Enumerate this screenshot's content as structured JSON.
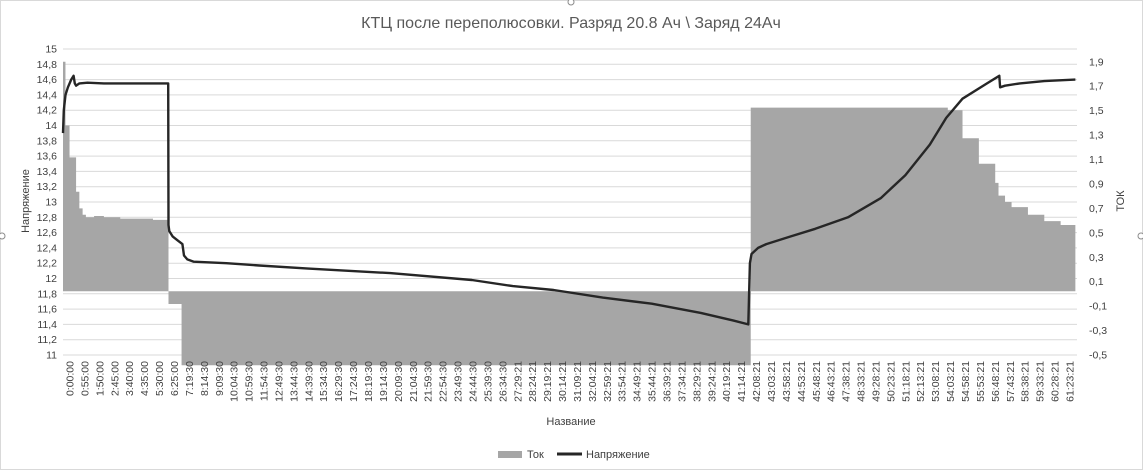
{
  "chart_data": {
    "type": "combo",
    "title": "КТЦ после переполюсовки. Разряд 20.8 Ач \\ Заряд 24Ач",
    "xlabel": "Название",
    "ylabel_left": "Напряжение",
    "ylabel_right": "ТОК",
    "y_left_ticks": [
      "15",
      "14,8",
      "14,6",
      "14,4",
      "14,2",
      "14",
      "13,8",
      "13,6",
      "13,4",
      "13,2",
      "13",
      "12,8",
      "12,6",
      "12,4",
      "12,2",
      "12",
      "11,8",
      "11,6",
      "11,4",
      "11,2",
      "11"
    ],
    "y_left_range": [
      11,
      15
    ],
    "y_right_ticks": [
      "1,9",
      "1,7",
      "1,5",
      "1,3",
      "1,1",
      "0,9",
      "0,7",
      "0,5",
      "0,3",
      "0,1",
      "-0,1",
      "-0,3",
      "-0,5"
    ],
    "y_right_range": [
      -0.5,
      1.9
    ],
    "x_ticks": [
      "0:00:00",
      "0:55:00",
      "1:50:00",
      "2:45:00",
      "3:40:00",
      "4:35:00",
      "5:30:00",
      "6:25:00",
      "7:19:30",
      "8:14:30",
      "9:09:30",
      "10:04:30",
      "10:59:30",
      "11:54:30",
      "12:49:30",
      "13:44:30",
      "14:39:30",
      "15:34:30",
      "16:29:30",
      "17:24:30",
      "18:19:30",
      "19:14:30",
      "20:09:30",
      "21:04:30",
      "21:59:30",
      "22:54:30",
      "23:49:30",
      "24:44:30",
      "25:39:30",
      "26:34:30",
      "27:29:21",
      "28:24:21",
      "29:19:21",
      "30:14:21",
      "31:09:21",
      "32:04:21",
      "32:59:21",
      "33:54:21",
      "34:49:21",
      "35:44:21",
      "36:39:21",
      "37:34:21",
      "38:29:21",
      "39:24:21",
      "40:19:21",
      "41:14:21",
      "42:08:21",
      "43:03:21",
      "43:58:21",
      "44:53:21",
      "45:48:21",
      "46:43:21",
      "47:38:21",
      "48:33:21",
      "49:28:21",
      "50:23:21",
      "51:18:21",
      "52:13:21",
      "53:08:21",
      "54:03:21",
      "54:58:21",
      "55:53:21",
      "56:48:21",
      "57:43:21",
      "58:38:21",
      "59:33:21",
      "60:28:21",
      "61:23:21"
    ],
    "series": [
      {
        "name": "Ток",
        "kind": "area",
        "axis": "right",
        "color": "#a6a6a6",
        "x": [
          0,
          0.15,
          0.4,
          0.8,
          1.0,
          1.2,
          1.4,
          1.6,
          1.9,
          2.5,
          3.5,
          4.5,
          5.5,
          6.4,
          6.45,
          7.2,
          7.25,
          42.0,
          42.05,
          49.0,
          53.8,
          54.1,
          55.0,
          56.0,
          57.0,
          57.2,
          57.6,
          58.0,
          59.0,
          60.0,
          61.0,
          61.9
        ],
        "values": [
          1.8,
          1.3,
          1.05,
          0.78,
          0.65,
          0.6,
          0.58,
          0.58,
          0.59,
          0.58,
          0.57,
          0.57,
          0.56,
          0.56,
          -0.1,
          -0.1,
          -0.58,
          -0.58,
          1.44,
          1.44,
          1.44,
          1.42,
          1.2,
          1.0,
          0.85,
          0.75,
          0.7,
          0.66,
          0.6,
          0.55,
          0.52,
          0.51
        ]
      },
      {
        "name": "Напряжение",
        "kind": "line",
        "axis": "left",
        "color": "#262626",
        "x": [
          0,
          0.05,
          0.15,
          0.3,
          0.5,
          0.65,
          0.72,
          0.8,
          1.0,
          1.5,
          2.5,
          3.5,
          4.5,
          5.5,
          6.43,
          6.45,
          6.5,
          6.7,
          7.0,
          7.3,
          7.4,
          7.6,
          8.0,
          10.0,
          12.0,
          15.0,
          20.0,
          25.0,
          27.5,
          30.0,
          33.0,
          36.0,
          39.0,
          41.0,
          41.9,
          42.0,
          42.1,
          42.5,
          43.0,
          44.5,
          46.0,
          48.0,
          50.0,
          51.5,
          53.0,
          54.0,
          55.0,
          56.5,
          57.25,
          57.3,
          57.6,
          58.5,
          60.0,
          61.9
        ],
        "values": [
          13.9,
          14.2,
          14.4,
          14.5,
          14.6,
          14.65,
          14.55,
          14.52,
          14.55,
          14.56,
          14.55,
          14.55,
          14.55,
          14.55,
          14.55,
          12.7,
          12.62,
          12.55,
          12.5,
          12.45,
          12.3,
          12.25,
          12.22,
          12.2,
          12.17,
          12.13,
          12.07,
          11.98,
          11.9,
          11.85,
          11.75,
          11.67,
          11.55,
          11.45,
          11.4,
          12.2,
          12.32,
          12.4,
          12.45,
          12.55,
          12.65,
          12.8,
          13.05,
          13.35,
          13.75,
          14.1,
          14.35,
          14.55,
          14.65,
          14.5,
          14.52,
          14.55,
          14.58,
          14.6
        ]
      }
    ],
    "x_range_hours": [
      0,
      62
    ]
  },
  "legend": {
    "items": [
      {
        "label": "Ток",
        "color": "#a6a6a6",
        "kind": "bar"
      },
      {
        "label": "Напряжение",
        "color": "#262626",
        "kind": "line"
      }
    ],
    "position": "bottom"
  }
}
